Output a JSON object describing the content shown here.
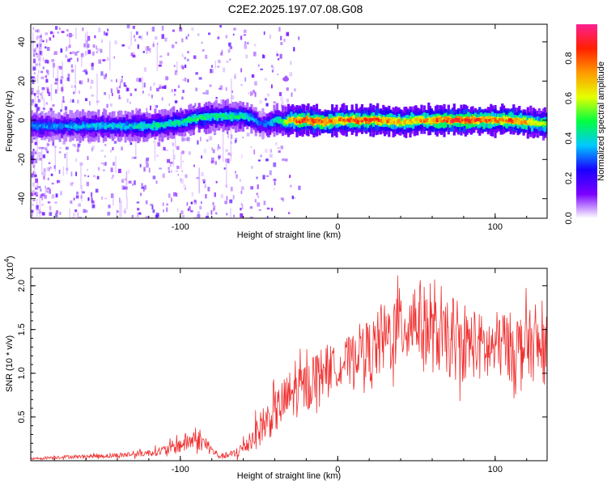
{
  "title": "C2E2.2025.197.07.08.G08",
  "chart_data": [
    {
      "type": "heatmap",
      "xlabel": "Height of straight line (km)",
      "ylabel": "Frequency (Hz)",
      "xlim": [
        -195,
        133
      ],
      "ylim": [
        -50,
        49
      ],
      "xticks": [
        -100,
        0,
        100
      ],
      "yticks": [
        -40,
        -20,
        0,
        20,
        40
      ],
      "colorbar": {
        "label": "Normalized spectral amplitude",
        "range": [
          0.0,
          0.97
        ],
        "ticks": [
          0.0,
          0.2,
          0.4,
          0.6,
          0.8
        ],
        "colors": [
          "#ffffff",
          "#7a00ff",
          "#1a00ff",
          "#00c8ff",
          "#00ff40",
          "#e6ff00",
          "#ff9a00",
          "#ff2000",
          "#ff2090"
        ]
      },
      "ridge": {
        "x": [
          -195,
          -180,
          -160,
          -140,
          -120,
          -100,
          -90,
          -80,
          -70,
          -60,
          -55,
          -50,
          -45,
          -40,
          -35,
          -30,
          -20,
          -10,
          0,
          10,
          20,
          30,
          40,
          50,
          60,
          70,
          80,
          90,
          100,
          110,
          120,
          133
        ],
        "y": [
          -3,
          -3,
          -3,
          -3,
          -3,
          -1,
          1,
          2,
          2,
          2,
          1,
          -2,
          -2,
          0,
          -1,
          0,
          0,
          -1,
          0,
          0,
          0,
          0,
          -1,
          0,
          0,
          0,
          0,
          0,
          0,
          0,
          -1,
          -2
        ],
        "amplitude": [
          0.35,
          0.35,
          0.4,
          0.4,
          0.45,
          0.45,
          0.5,
          0.45,
          0.5,
          0.45,
          0.4,
          0.3,
          0.35,
          0.45,
          0.55,
          0.75,
          0.9,
          0.85,
          0.8,
          0.9,
          0.9,
          0.8,
          0.7,
          0.75,
          0.8,
          0.9,
          0.9,
          0.85,
          0.8,
          0.85,
          0.75,
          0.6
        ]
      },
      "grid": false
    },
    {
      "type": "line",
      "xlabel": "Height of straight line (km)",
      "ylabel": "SNR (10 * v/v)",
      "y_multiplier": "(x10",
      "y_multiplier_exp": "4",
      "xlim": [
        -195,
        133
      ],
      "ylim": [
        0.0,
        2.2
      ],
      "xticks": [
        -100,
        0,
        100
      ],
      "yticks": [
        0.5,
        1.0,
        1.5,
        2.0
      ],
      "series": [
        {
          "color": "#f03030",
          "x": [
            -195,
            -180,
            -160,
            -140,
            -120,
            -110,
            -100,
            -95,
            -90,
            -85,
            -80,
            -75,
            -70,
            -65,
            -60,
            -55,
            -50,
            -45,
            -40,
            -35,
            -30,
            -25,
            -20,
            -15,
            -10,
            -5,
            0,
            5,
            10,
            15,
            20,
            25,
            30,
            35,
            40,
            45,
            50,
            55,
            60,
            65,
            70,
            75,
            80,
            85,
            90,
            95,
            100,
            105,
            110,
            115,
            120,
            125,
            133
          ],
          "values": [
            0.02,
            0.04,
            0.05,
            0.06,
            0.09,
            0.12,
            0.18,
            0.22,
            0.25,
            0.2,
            0.12,
            0.05,
            0.06,
            0.08,
            0.15,
            0.25,
            0.35,
            0.45,
            0.55,
            0.65,
            0.75,
            0.8,
            0.85,
            0.95,
            1.05,
            1.1,
            1.05,
            1.15,
            1.2,
            1.3,
            1.25,
            1.3,
            1.4,
            1.45,
            1.55,
            1.6,
            1.65,
            1.55,
            1.45,
            1.4,
            1.35,
            1.3,
            1.3,
            1.35,
            1.3,
            1.25,
            1.3,
            1.35,
            1.3,
            1.3,
            1.35,
            1.3,
            1.25
          ],
          "spread": [
            0.01,
            0.02,
            0.02,
            0.03,
            0.04,
            0.06,
            0.1,
            0.12,
            0.12,
            0.1,
            0.06,
            0.03,
            0.04,
            0.06,
            0.1,
            0.15,
            0.2,
            0.22,
            0.25,
            0.28,
            0.3,
            0.3,
            0.3,
            0.3,
            0.25,
            0.25,
            0.2,
            0.25,
            0.25,
            0.3,
            0.35,
            0.4,
            0.4,
            0.45,
            0.45,
            0.45,
            0.5,
            0.45,
            0.45,
            0.4,
            0.4,
            0.4,
            0.4,
            0.4,
            0.4,
            0.4,
            0.4,
            0.4,
            0.4,
            0.4,
            0.4,
            0.4,
            0.4
          ]
        }
      ],
      "grid": false
    }
  ]
}
